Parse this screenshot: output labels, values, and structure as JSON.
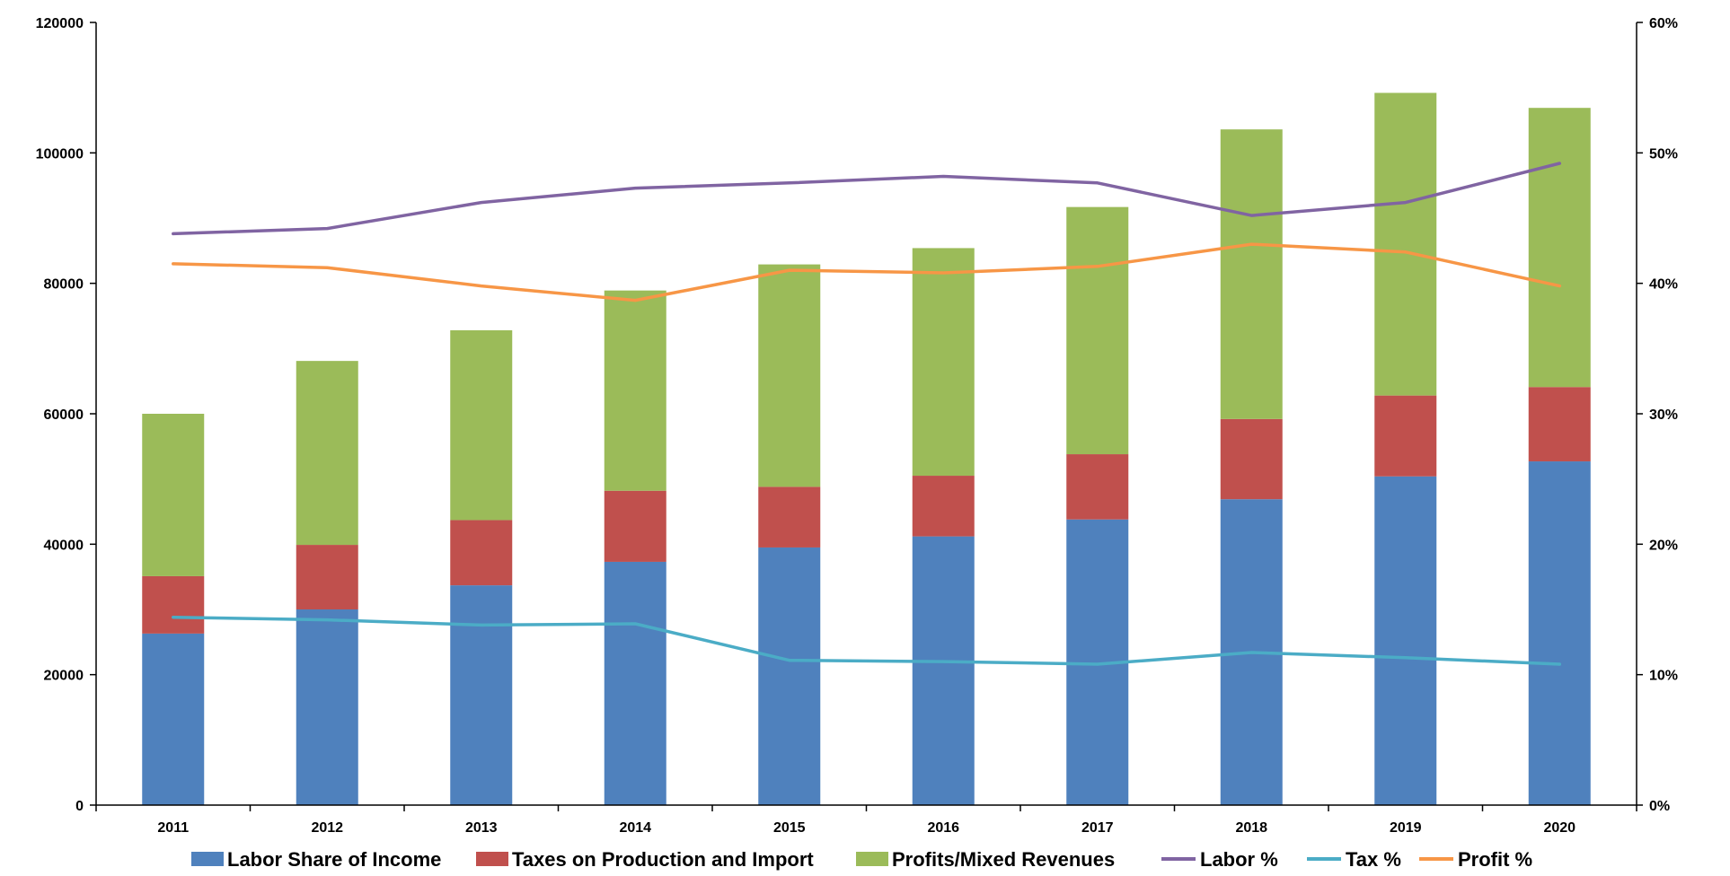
{
  "chart_data": {
    "type": "bar",
    "stacked": true,
    "title": "",
    "xlabel": "",
    "ylabel": "",
    "categories": [
      "2011",
      "2012",
      "2013",
      "2014",
      "2015",
      "2016",
      "2017",
      "2018",
      "2019",
      "2020"
    ],
    "ylim": [
      0,
      120000
    ],
    "y_ticks": [
      0,
      20000,
      40000,
      60000,
      80000,
      100000,
      120000
    ],
    "y_tick_labels": [
      "0",
      "20000",
      "40000",
      "60000",
      "80000",
      "100000",
      "120000"
    ],
    "y2lim": [
      0,
      60
    ],
    "y2_ticks": [
      0,
      10,
      20,
      30,
      40,
      50,
      60
    ],
    "y2_tick_labels": [
      "0%",
      "10%",
      "20%",
      "30%",
      "40%",
      "50%",
      "60%"
    ],
    "grid": false,
    "legend_position": "bottom",
    "series": [
      {
        "name": "Labor Share of Income",
        "type": "bar",
        "axis": "left",
        "color": "#4F81BD",
        "values": [
          26300,
          30000,
          33700,
          37300,
          39500,
          41200,
          43800,
          46900,
          50400,
          52700
        ]
      },
      {
        "name": "Taxes on Production and Import",
        "type": "bar",
        "axis": "left",
        "color": "#C0504D",
        "values": [
          8800,
          9900,
          10000,
          10900,
          9300,
          9300,
          10000,
          12300,
          12400,
          11400
        ]
      },
      {
        "name": "Profits/Mixed Revenues",
        "type": "bar",
        "axis": "left",
        "color": "#9BBB59",
        "values": [
          24900,
          28200,
          29100,
          30700,
          34100,
          34900,
          37900,
          44400,
          46400,
          42800
        ]
      },
      {
        "name": "Labor %",
        "type": "line",
        "axis": "right",
        "color": "#8064A2",
        "values": [
          43.8,
          44.2,
          46.2,
          47.3,
          47.7,
          48.2,
          47.7,
          45.2,
          46.2,
          49.2
        ]
      },
      {
        "name": "Tax %",
        "type": "line",
        "axis": "right",
        "color": "#4BACC6",
        "values": [
          14.4,
          14.2,
          13.8,
          13.9,
          11.1,
          11.0,
          10.8,
          11.7,
          11.3,
          10.8
        ]
      },
      {
        "name": "Profit %",
        "type": "line",
        "axis": "right",
        "color": "#F79646",
        "values": [
          41.5,
          41.2,
          39.8,
          38.7,
          41.0,
          40.8,
          41.3,
          43.0,
          42.4,
          39.8
        ]
      }
    ]
  }
}
